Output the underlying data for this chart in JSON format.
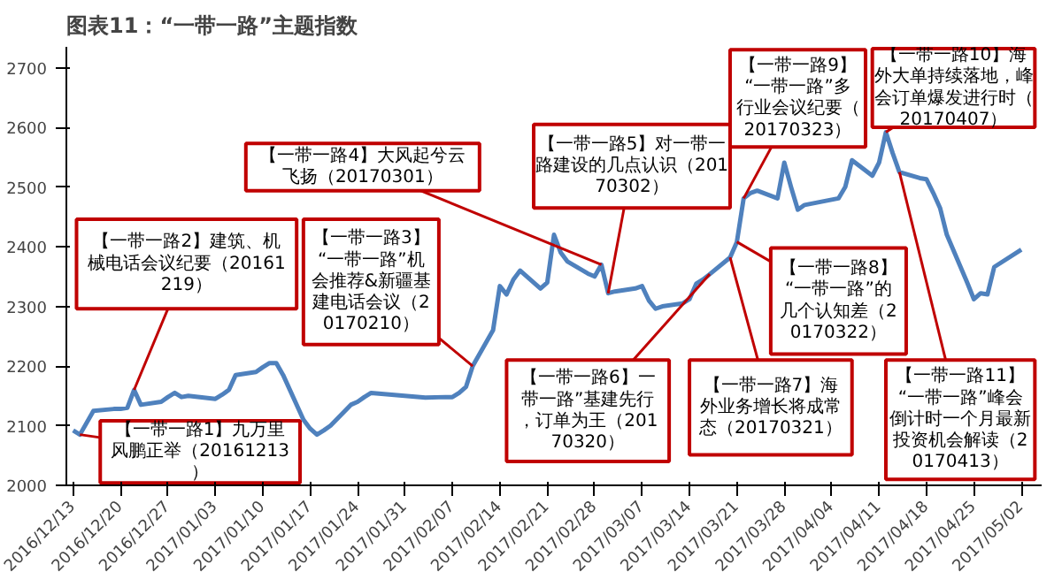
{
  "chart_data": {
    "type": "line",
    "title": "图表11：“一带一路”主题指数",
    "x": [
      "2016-12-13",
      "2016-12-14",
      "2016-12-16",
      "2016-12-19",
      "2016-12-20",
      "2016-12-21",
      "2016-12-22",
      "2016-12-23",
      "2016-12-26",
      "2016-12-27",
      "2016-12-28",
      "2016-12-29",
      "2016-12-30",
      "2017-01-03",
      "2017-01-04",
      "2017-01-05",
      "2017-01-06",
      "2017-01-09",
      "2017-01-10",
      "2017-01-11",
      "2017-01-12",
      "2017-01-13",
      "2017-01-16",
      "2017-01-17",
      "2017-01-18",
      "2017-01-19",
      "2017-01-20",
      "2017-01-23",
      "2017-01-24",
      "2017-01-25",
      "2017-01-26",
      "2017-02-03",
      "2017-02-06",
      "2017-02-07",
      "2017-02-08",
      "2017-02-09",
      "2017-02-10",
      "2017-02-13",
      "2017-02-14",
      "2017-02-15",
      "2017-02-16",
      "2017-02-17",
      "2017-02-20",
      "2017-02-21",
      "2017-02-22",
      "2017-02-23",
      "2017-02-24",
      "2017-02-27",
      "2017-02-28",
      "2017-03-01",
      "2017-03-02",
      "2017-03-03",
      "2017-03-06",
      "2017-03-07",
      "2017-03-08",
      "2017-03-09",
      "2017-03-10",
      "2017-03-13",
      "2017-03-14",
      "2017-03-15",
      "2017-03-16",
      "2017-03-17",
      "2017-03-20",
      "2017-03-21",
      "2017-03-22",
      "2017-03-23",
      "2017-03-24",
      "2017-03-27",
      "2017-03-28",
      "2017-03-29",
      "2017-03-30",
      "2017-03-31",
      "2017-04-05",
      "2017-04-06",
      "2017-04-07",
      "2017-04-10",
      "2017-04-11",
      "2017-04-12",
      "2017-04-13",
      "2017-04-14",
      "2017-04-17",
      "2017-04-18",
      "2017-04-19",
      "2017-04-20",
      "2017-04-21",
      "2017-04-24",
      "2017-04-25",
      "2017-04-26",
      "2017-04-27",
      "2017-04-28",
      "2017-05-02"
    ],
    "series": [
      {
        "color": "#4f81bd",
        "values": [
          2092,
          2085,
          2125,
          2128,
          2128,
          2130,
          2160,
          2135,
          2140,
          2148,
          2155,
          2148,
          2150,
          2145,
          2152,
          2160,
          2185,
          2190,
          2198,
          2205,
          2205,
          2185,
          2110,
          2095,
          2085,
          2092,
          2100,
          2135,
          2140,
          2148,
          2155,
          2147,
          2148,
          2148,
          2155,
          2165,
          2200,
          2260,
          2334,
          2320,
          2345,
          2360,
          2330,
          2340,
          2420,
          2390,
          2375,
          2355,
          2350,
          2370,
          2322,
          2325,
          2330,
          2334,
          2310,
          2296,
          2300,
          2305,
          2312,
          2338,
          2345,
          2354,
          2382,
          2408,
          2481,
          2490,
          2494,
          2481,
          2541,
          2500,
          2462,
          2470,
          2481,
          2500,
          2545,
          2519,
          2541,
          2592,
          2557,
          2525,
          2515,
          2513,
          2490,
          2465,
          2420,
          2340,
          2312,
          2322,
          2320,
          2366,
          2395
        ]
      }
    ],
    "xlim": [
      "2016-12-12",
      "2017-05-05"
    ],
    "xticks": [
      {
        "value": "2016-12-13",
        "label": "2016/12/13"
      },
      {
        "value": "2016-12-20",
        "label": "2016/12/20"
      },
      {
        "value": "2016-12-27",
        "label": "2016/12/27"
      },
      {
        "value": "2017-01-03",
        "label": "2017/01/03"
      },
      {
        "value": "2017-01-10",
        "label": "2017/01/10"
      },
      {
        "value": "2017-01-17",
        "label": "2017/01/17"
      },
      {
        "value": "2017-01-24",
        "label": "2017/01/24"
      },
      {
        "value": "2017-01-31",
        "label": "2017/01/31"
      },
      {
        "value": "2017-02-07",
        "label": "2017/02/07"
      },
      {
        "value": "2017-02-14",
        "label": "2017/02/14"
      },
      {
        "value": "2017-02-21",
        "label": "2017/02/21"
      },
      {
        "value": "2017-02-28",
        "label": "2017/02/28"
      },
      {
        "value": "2017-03-07",
        "label": "2017/03/07"
      },
      {
        "value": "2017-03-14",
        "label": "2017/03/14"
      },
      {
        "value": "2017-03-21",
        "label": "2017/03/21"
      },
      {
        "value": "2017-03-28",
        "label": "2017/03/28"
      },
      {
        "value": "2017-04-04",
        "label": "2017/04/04"
      },
      {
        "value": "2017-04-11",
        "label": "2017/04/11"
      },
      {
        "value": "2017-04-18",
        "label": "2017/04/18"
      },
      {
        "value": "2017-04-25",
        "label": "2017/04/25"
      },
      {
        "value": "2017-05-02",
        "label": "2017/05/02"
      }
    ],
    "ylim": [
      2000,
      2735
    ],
    "yticks": [
      2000,
      2100,
      2200,
      2300,
      2400,
      2500,
      2600,
      2700
    ],
    "grid": false,
    "marker": "none",
    "line_style": "solid",
    "annotations": [
      {
        "text": "【一带一路1】九万里风鹏正举（20161213）",
        "x": "2016-12-14",
        "y": 2085
      },
      {
        "text": "【一带一路2】建筑、机械电话会议纪要（20161219）",
        "x": "2016-12-22",
        "y": 2160
      },
      {
        "text": "【一带一路3】“一带一路”机会推荐&新疆基建电话会议（20170210）",
        "x": "2017-02-10",
        "y": 2200
      },
      {
        "text": "【一带一路4】大风起兮云飞扬（20170301）",
        "x": "2017-03-01",
        "y": 2370
      },
      {
        "text": "【一带一路5】对一带一路建设的几点认识（20170302）",
        "x": "2017-03-02",
        "y": 2322
      },
      {
        "text": "【一带一路6】一带一路”基建先行，订单为王（20170320）",
        "x": "2017-03-17",
        "y": 2354
      },
      {
        "text": "【一带一路7】海外业务增长将成常态（20170321）",
        "x": "2017-03-20",
        "y": 2382
      },
      {
        "text": "【一带一路8】“一带一路”的几个认知差（20170322）",
        "x": "2017-03-21",
        "y": 2408
      },
      {
        "text": "【一带一路9】“一带一路”多行业会议纪要（20170323）",
        "x": "2017-03-22",
        "y": 2481
      },
      {
        "text": "【一带一路10】海外大单持续落地，峰会订单爆发进行时（20170407）",
        "x": "2017-04-12",
        "y": 2592
      },
      {
        "text": "【一带一路11】“一带一路”峰会倒计时一个月最新投资机会解读（20170413）",
        "x": "2017-04-14",
        "y": 2525
      }
    ]
  }
}
